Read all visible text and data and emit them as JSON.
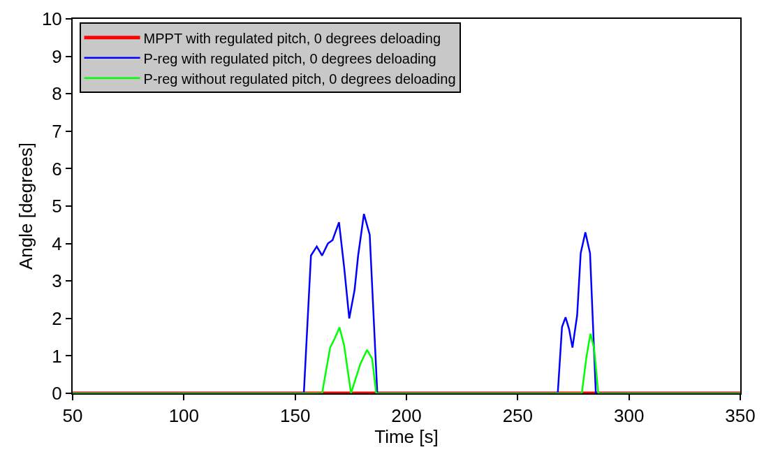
{
  "chart_data": {
    "type": "line",
    "xlabel": "Time [s]",
    "ylabel": "Angle [degrees]",
    "xlim": [
      50,
      350
    ],
    "ylim": [
      0,
      10
    ],
    "xticks": [
      50,
      100,
      150,
      200,
      250,
      300,
      350
    ],
    "yticks": [
      0,
      1,
      2,
      3,
      4,
      5,
      6,
      7,
      8,
      9,
      10
    ],
    "legend": "top left",
    "line_style": "solid",
    "series": [
      {
        "name": "MPPT with regulated pitch, 0 degrees deloading",
        "color": "#ff0000",
        "x": [
          50,
          350
        ],
        "values": [
          0,
          0
        ]
      },
      {
        "name": "P-reg with regulated pitch, 0 degrees deloading",
        "color": "#0000ff",
        "x": [
          50,
          153.9,
          157.1,
          159.7,
          162.1,
          164.7,
          166.8,
          169.7,
          172.0,
          174.3,
          176.7,
          178.3,
          180.9,
          183.5,
          186.9,
          268.0,
          269.9,
          271.5,
          273.1,
          274.6,
          276.7,
          278.3,
          280.4,
          282.5,
          285.1,
          350
        ],
        "values": [
          0,
          0,
          3.68,
          3.92,
          3.68,
          4.0,
          4.09,
          4.57,
          3.37,
          2.0,
          2.76,
          3.68,
          4.79,
          4.23,
          0,
          0,
          1.77,
          2.03,
          1.71,
          1.22,
          2.08,
          3.74,
          4.3,
          3.74,
          0,
          0
        ]
      },
      {
        "name": "P-reg without regulated pitch, 0 degrees deloading",
        "color": "#00ff00",
        "x": [
          50,
          162.1,
          165.7,
          167.8,
          169.9,
          172.0,
          175.1,
          179.3,
          182.3,
          184.6,
          186.4,
          278.8,
          280.9,
          282.7,
          284.3,
          286.2,
          350
        ],
        "values": [
          0,
          0,
          1.22,
          1.47,
          1.76,
          1.28,
          0,
          0.79,
          1.16,
          0.92,
          0,
          0,
          0.98,
          1.59,
          1.22,
          0,
          0
        ]
      }
    ]
  }
}
